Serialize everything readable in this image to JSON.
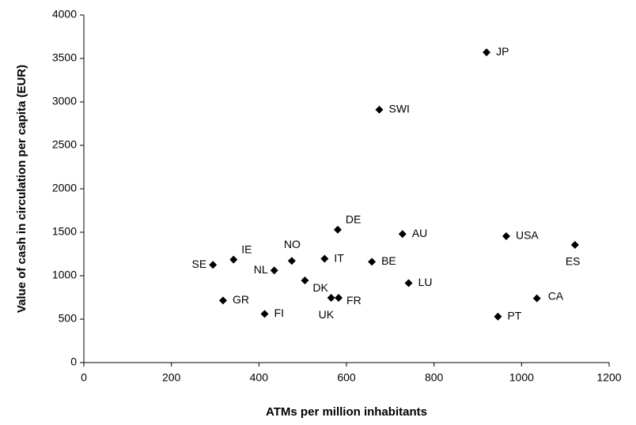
{
  "chart_data": {
    "type": "scatter",
    "xlabel": "ATMs per million inhabitants",
    "ylabel": "Value of cash in circulation per capita (EUR)",
    "labels": [
      "JP",
      "SWI",
      "DE",
      "AU",
      "USA",
      "ES",
      "NO",
      "IE",
      "SE",
      "IT",
      "BE",
      "NL",
      "DK",
      "LU",
      "UK",
      "FR",
      "GR",
      "FI",
      "CA",
      "PT"
    ],
    "x": [
      920,
      675,
      580,
      728,
      965,
      1122,
      475,
      342,
      295,
      550,
      658,
      435,
      505,
      742,
      565,
      582,
      318,
      413,
      1035,
      946
    ],
    "values": [
      3570,
      2910,
      1530,
      1480,
      1455,
      1355,
      1170,
      1185,
      1125,
      1195,
      1160,
      1060,
      945,
      915,
      745,
      745,
      715,
      560,
      740,
      530
    ],
    "color": "#000000",
    "xlim": [
      0,
      1200
    ],
    "xticks": [
      0,
      200,
      400,
      600,
      800,
      1000,
      1200
    ],
    "ylim": [
      0,
      4000
    ],
    "yticks": [
      0,
      500,
      1000,
      1500,
      2000,
      2500,
      3000,
      3500,
      4000
    ],
    "grid": false
  }
}
